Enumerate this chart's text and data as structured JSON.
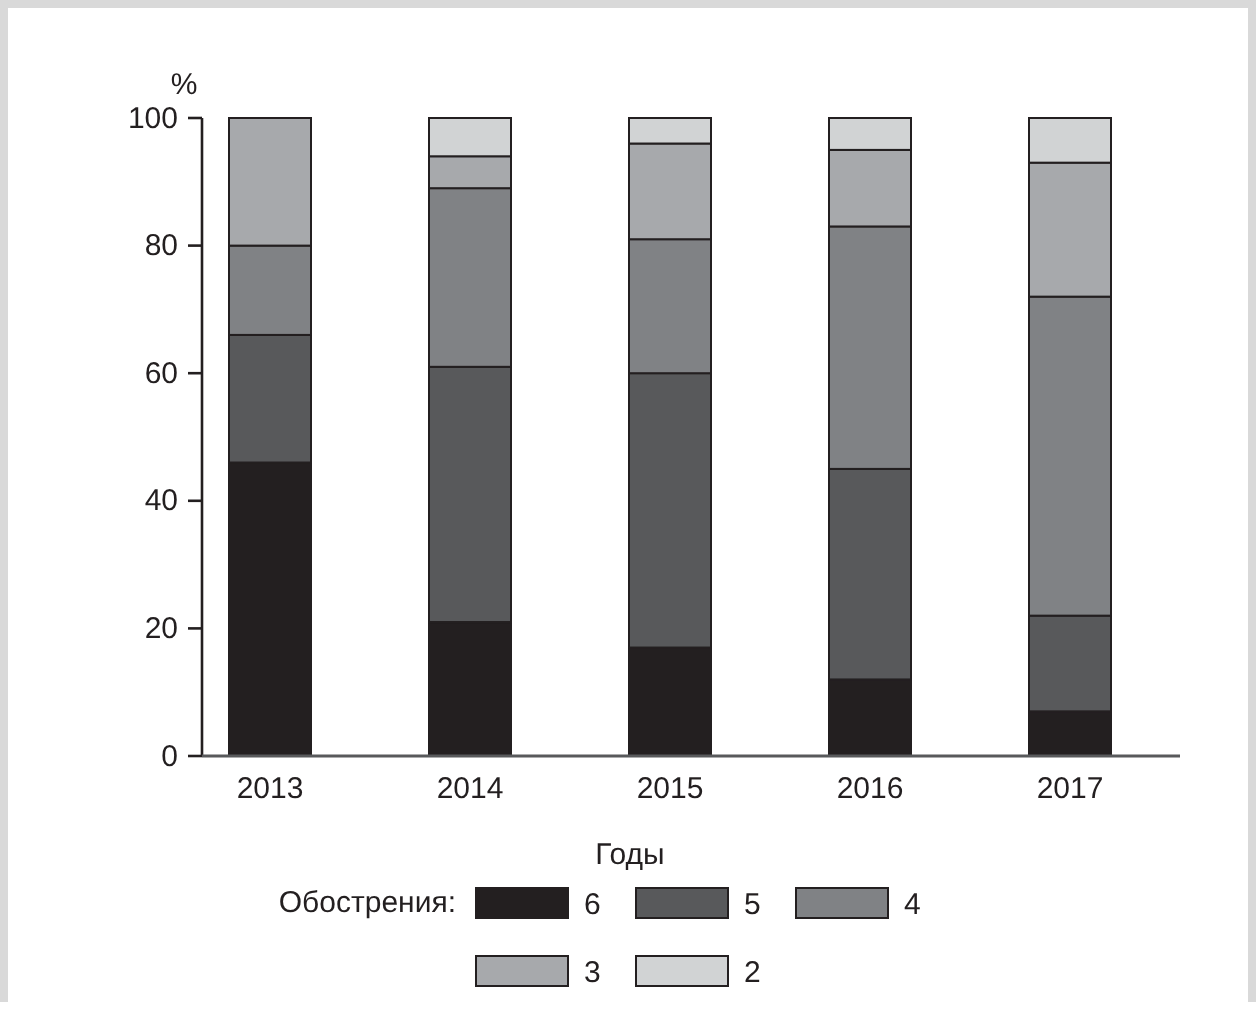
{
  "chart_data": {
    "type": "bar",
    "stacked": true,
    "xlabel": "Годы",
    "ylabel": "%",
    "legend_title": "Обострения:",
    "legend": "bottom",
    "categories": [
      "2013",
      "2014",
      "2015",
      "2016",
      "2017"
    ],
    "series": [
      {
        "name": "6",
        "color": "#231f20",
        "values": [
          46,
          21,
          17,
          12,
          7
        ]
      },
      {
        "name": "5",
        "color": "#58595b",
        "values": [
          20,
          40,
          43,
          33,
          15
        ]
      },
      {
        "name": "4",
        "color": "#808285",
        "values": [
          14,
          28,
          21,
          38,
          50
        ]
      },
      {
        "name": "3",
        "color": "#a7a9ac",
        "values": [
          20,
          5,
          15,
          12,
          21
        ]
      },
      {
        "name": "2",
        "color": "#d1d3d4",
        "values": [
          0,
          6,
          4,
          5,
          7
        ]
      }
    ],
    "ylim": [
      0,
      100
    ],
    "yticks": [
      0,
      20,
      40,
      60,
      80,
      100
    ]
  }
}
